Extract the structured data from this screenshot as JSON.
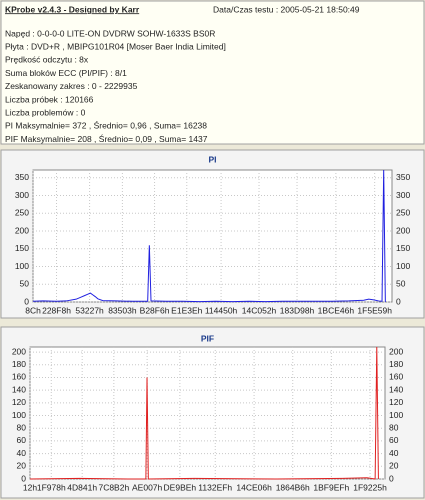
{
  "header": {
    "title": "KProbe v2.4.3 - Designed by Karr",
    "date": "Data/Czas testu : 2005-05-21 18:50:49",
    "lines": [
      "Napęd : 0-0-0-0 LITE-ON DVDRW SOHW-1633S BS0R",
      "Płyta : DVD+R , MBIPG101R04 [Moser Baer India Limited]",
      "Prędkość odczytu : 8x",
      "Suma bloków ECC (PI/PIF) : 8/1",
      "Zeskanowany zakres : 0 - 2229935",
      "Liczba próbek : 120166",
      "Liczba problemów : 0",
      "PI Maksymalnie= 372 , Średnio= 0,96 , Suma= 16238",
      "PIF Maksymalnie= 208 , Średnio= 0,09 , Suma= 1437"
    ]
  },
  "chart_data": [
    {
      "type": "line",
      "title": "PI",
      "color": "#2020e0",
      "grid": true,
      "x": [
        0,
        60000,
        140000,
        200000,
        260000,
        290000,
        310000,
        330000,
        345000,
        360000,
        375000,
        390000,
        420000,
        500000,
        600000,
        690000,
        700000,
        710000,
        800000,
        900000,
        1000000,
        1100000,
        1200000,
        1300000,
        1400000,
        1500000,
        1600000,
        1700000,
        1800000,
        1900000,
        1990000,
        2020000,
        2050000,
        2080000,
        2100000,
        2110000,
        2120000
      ],
      "values": [
        2,
        3,
        2,
        3,
        8,
        14,
        18,
        22,
        25,
        20,
        15,
        9,
        4,
        3,
        2,
        2,
        160,
        3,
        2,
        2,
        1,
        2,
        1,
        2,
        1,
        2,
        2,
        2,
        2,
        3,
        5,
        8,
        6,
        3,
        2,
        372,
        0
      ],
      "xlim": [
        0,
        2160000
      ],
      "ylim": [
        0,
        372
      ],
      "yticks": [
        0,
        50,
        100,
        150,
        200,
        250,
        300,
        350
      ],
      "xticks": [
        {
          "value": 140,
          "label": "8Ch"
        },
        {
          "value": 141560,
          "label": "228F8h"
        },
        {
          "value": 340519,
          "label": "53227h"
        },
        {
          "value": 537859,
          "label": "83503h"
        },
        {
          "value": 731382,
          "label": "B28F6h"
        },
        {
          "value": 925246,
          "label": "E1E3Eh"
        },
        {
          "value": 1131600,
          "label": "114450h"
        },
        {
          "value": 1359954,
          "label": "14C052h"
        },
        {
          "value": 1588632,
          "label": "183D98h"
        },
        {
          "value": 1822278,
          "label": "1BCE46h"
        },
        {
          "value": 2055769,
          "label": "1F5E59h"
        }
      ]
    },
    {
      "type": "line",
      "title": "PIF",
      "color": "#e02020",
      "grid": true,
      "x": [
        0,
        300000,
        600000,
        705000,
        712000,
        720000,
        1000000,
        1500000,
        1900000,
        2050000,
        2100000,
        2110000,
        2120000
      ],
      "values": [
        0,
        1,
        0,
        0,
        160,
        0,
        1,
        0,
        1,
        2,
        0,
        208,
        0
      ],
      "xlim": [
        0,
        2160000
      ],
      "ylim": [
        0,
        208
      ],
      "yticks": [
        0,
        20,
        40,
        60,
        80,
        100,
        120,
        140,
        160,
        180,
        200
      ],
      "xticks": [
        {
          "value": 18,
          "label": "12h"
        },
        {
          "value": 129400,
          "label": "1F978h"
        },
        {
          "value": 317505,
          "label": "4D841h"
        },
        {
          "value": 510130,
          "label": "7C8B2h"
        },
        {
          "value": 712711,
          "label": "AE007h"
        },
        {
          "value": 911806,
          "label": "DE9BEh"
        },
        {
          "value": 1127151,
          "label": "1132EFh"
        },
        {
          "value": 1363462,
          "label": "14CE06h"
        },
        {
          "value": 1598646,
          "label": "1864B6h"
        },
        {
          "value": 1833455,
          "label": "1BF9EFh"
        },
        {
          "value": 2069029,
          "label": "1F9225h"
        }
      ]
    }
  ]
}
